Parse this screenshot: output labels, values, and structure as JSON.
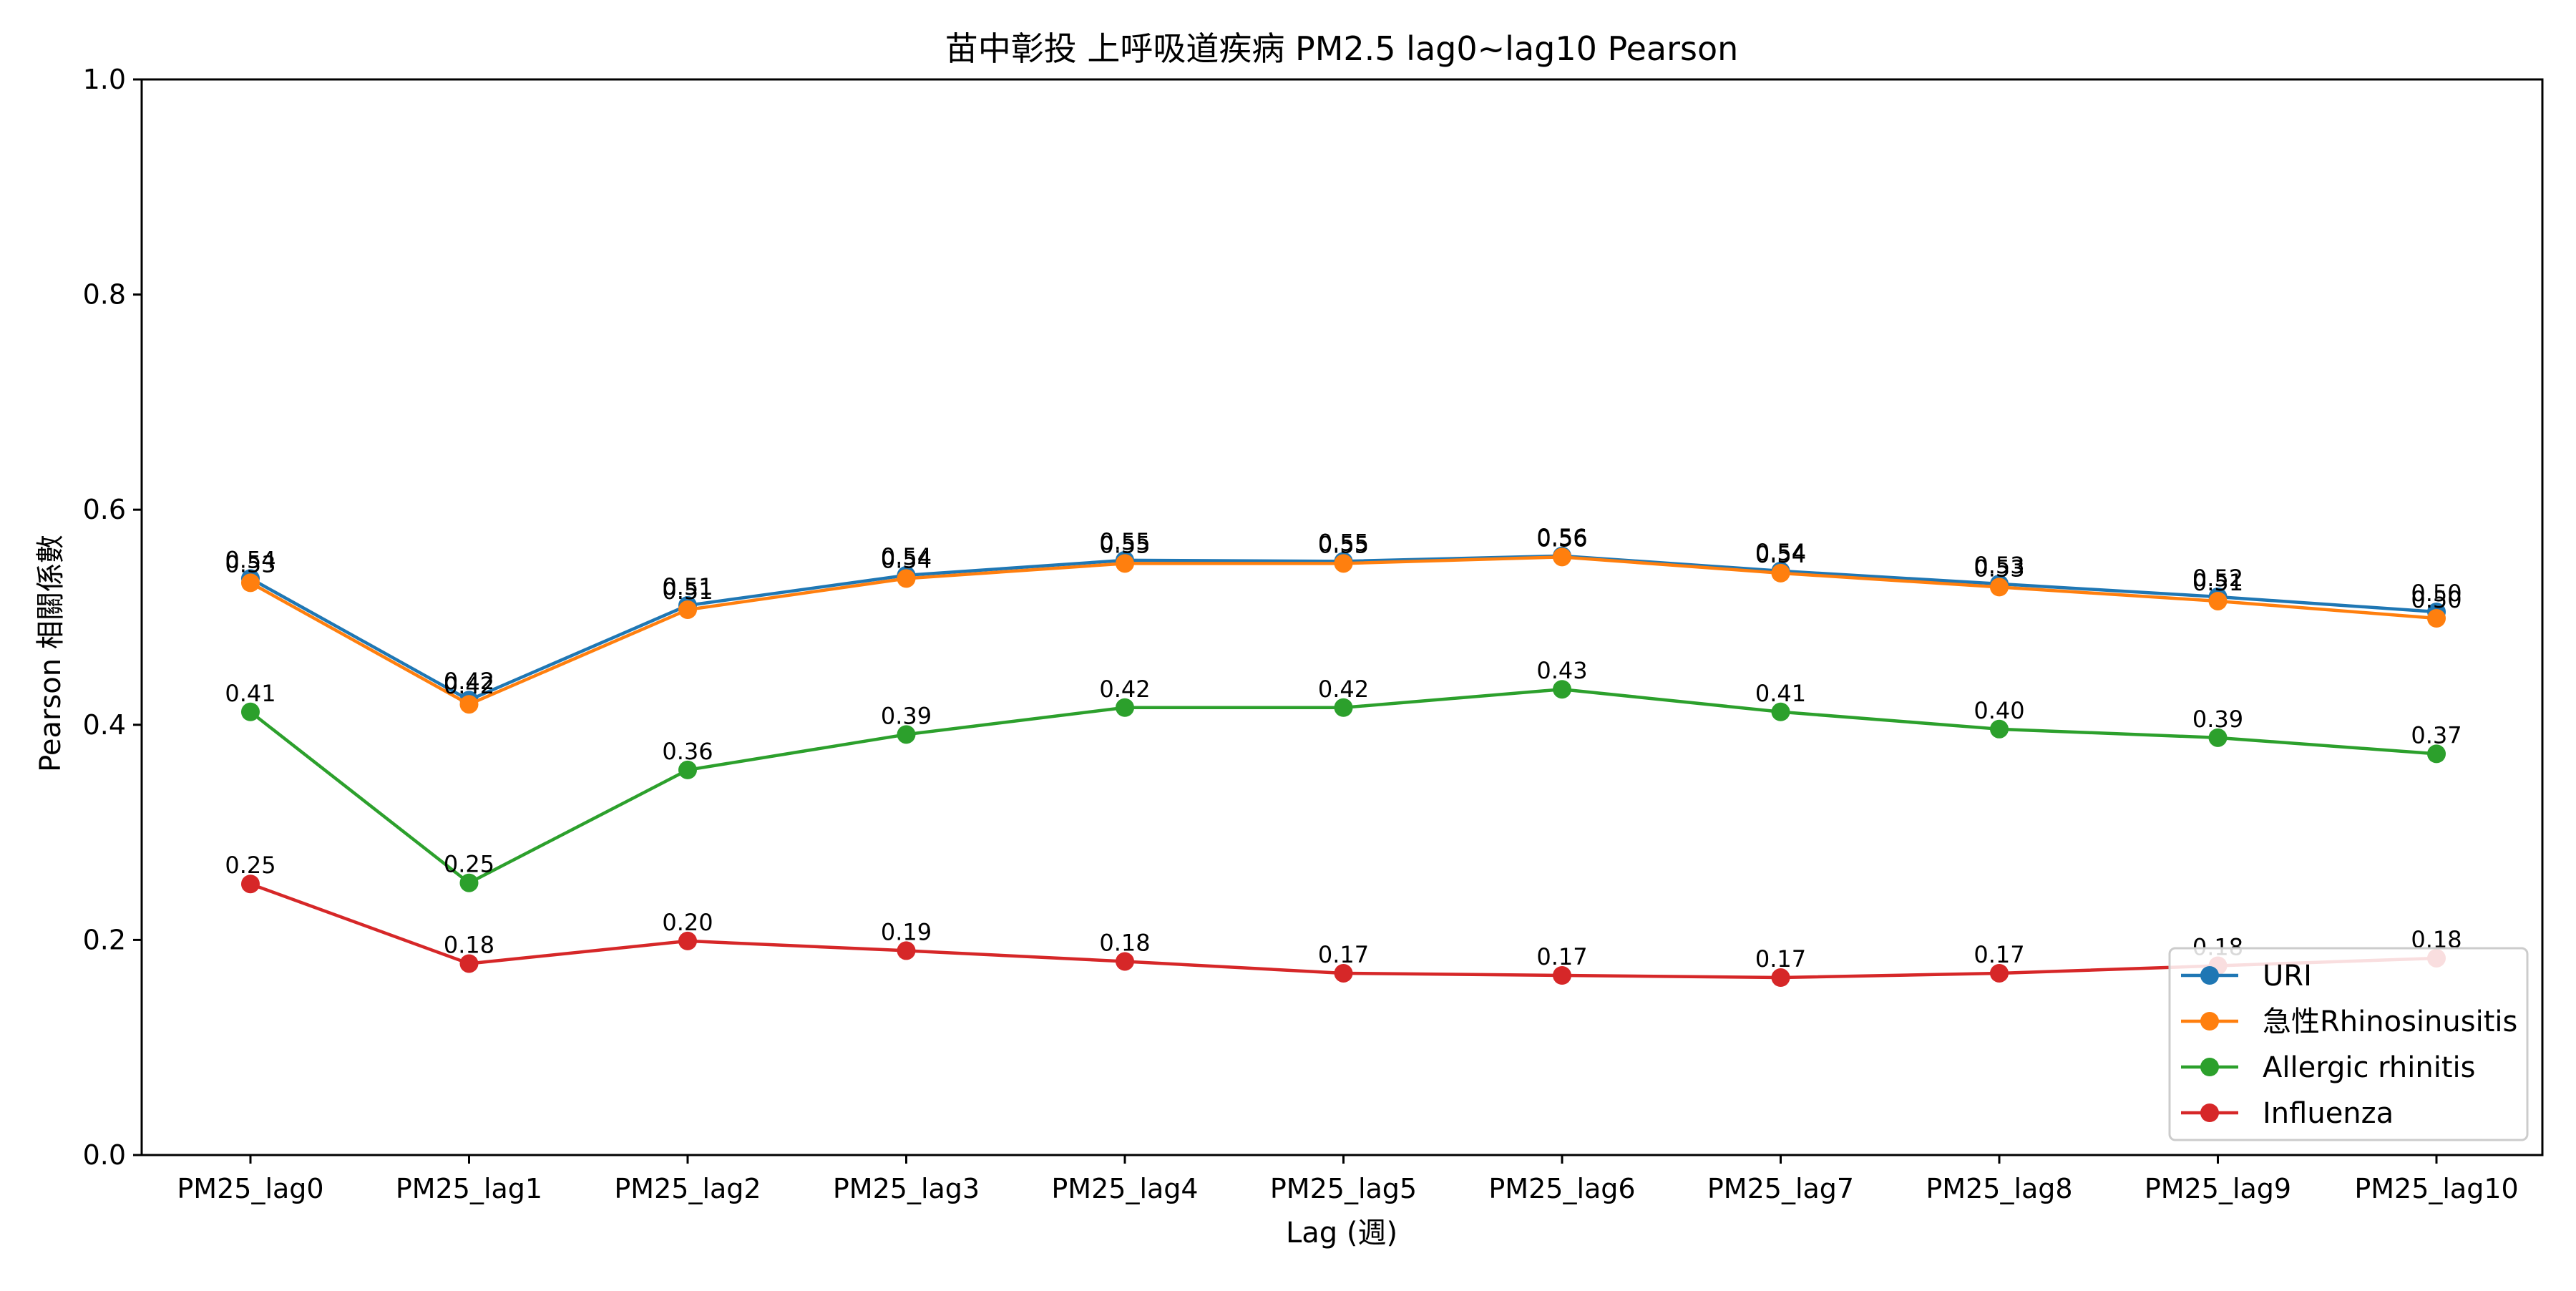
{
  "chart_data": {
    "type": "line",
    "title": "苗中彰投 上呼吸道疾病 PM2.5 lag0~lag10 Pearson",
    "xlabel": "Lag (週)",
    "ylabel": "Pearson 相關係數",
    "ylim": [
      0.0,
      1.0
    ],
    "yticks": [
      0.0,
      0.2,
      0.4,
      0.6,
      0.8,
      1.0
    ],
    "ytick_labels": [
      "0.0",
      "0.2",
      "0.4",
      "0.6",
      "0.8",
      "1.0"
    ],
    "categories": [
      "PM25_lag0",
      "PM25_lag1",
      "PM25_lag2",
      "PM25_lag3",
      "PM25_lag4",
      "PM25_lag5",
      "PM25_lag6",
      "PM25_lag7",
      "PM25_lag8",
      "PM25_lag9",
      "PM25_lag10"
    ],
    "grid": false,
    "legend_position": "bottom-right",
    "series": [
      {
        "name": "URI",
        "color": "#1f77b4",
        "values": [
          0.536,
          0.423,
          0.511,
          0.539,
          0.553,
          0.552,
          0.557,
          0.543,
          0.531,
          0.519,
          0.505
        ],
        "labels": [
          "0.54",
          "0.42",
          "0.51",
          "0.54",
          "0.55",
          "0.55",
          "0.56",
          "0.54",
          "0.53",
          "0.52",
          "0.50"
        ]
      },
      {
        "name": "急性Rhinosinusitis",
        "color": "#ff7f0e",
        "values": [
          0.532,
          0.419,
          0.507,
          0.536,
          0.55,
          0.55,
          0.556,
          0.541,
          0.528,
          0.515,
          0.499
        ],
        "labels": [
          "0.53",
          "0.42",
          "0.51",
          "0.54",
          "0.55",
          "0.55",
          "0.56",
          "0.54",
          "0.53",
          "0.51",
          "0.50"
        ]
      },
      {
        "name": "Allergic rhinitis",
        "color": "#2ca02c",
        "values": [
          0.412,
          0.253,
          0.358,
          0.391,
          0.416,
          0.416,
          0.433,
          0.412,
          0.396,
          0.388,
          0.373
        ],
        "labels": [
          "0.41",
          "0.25",
          "0.36",
          "0.39",
          "0.42",
          "0.42",
          "0.43",
          "0.41",
          "0.40",
          "0.39",
          "0.37"
        ]
      },
      {
        "name": "Influenza",
        "color": "#d62728",
        "values": [
          0.252,
          0.178,
          0.199,
          0.19,
          0.18,
          0.169,
          0.167,
          0.165,
          0.169,
          0.176,
          0.183
        ],
        "labels": [
          "0.25",
          "0.18",
          "0.20",
          "0.19",
          "0.18",
          "0.17",
          "0.17",
          "0.17",
          "0.17",
          "0.18",
          "0.18"
        ]
      }
    ]
  }
}
